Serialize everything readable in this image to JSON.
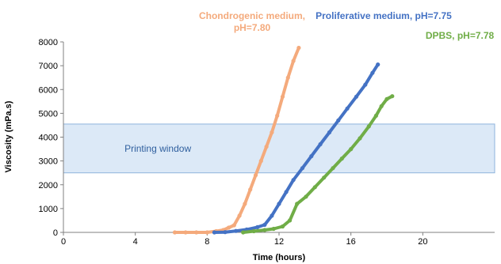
{
  "chart_data": {
    "type": "scatter",
    "title": "",
    "xlabel": "Time (hours)",
    "ylabel": "Viscosity (mPa.s)",
    "xlim": [
      0,
      24
    ],
    "ylim": [
      0,
      8000
    ],
    "xticks": [
      0,
      4,
      8,
      12,
      16,
      20
    ],
    "yticks": [
      0,
      1000,
      2000,
      3000,
      4000,
      5000,
      6000,
      7000,
      8000
    ],
    "grid": false,
    "band": {
      "label": "Printing window",
      "y_from": 2500,
      "y_to": 4550,
      "color": "#dce9f7"
    },
    "series": [
      {
        "name": "Chondrogenic medium, pH=7.80",
        "label_lines": [
          "Chondrogenic medium,",
          "pH=7.80"
        ],
        "color": "#f4aa7c",
        "points": [
          [
            6.2,
            0
          ],
          [
            6.8,
            0
          ],
          [
            7.4,
            0
          ],
          [
            8.0,
            0
          ],
          [
            8.5,
            50
          ],
          [
            8.9,
            100
          ],
          [
            9.2,
            200
          ],
          [
            9.5,
            300
          ],
          [
            9.8,
            700
          ],
          [
            10.1,
            1200
          ],
          [
            10.4,
            1800
          ],
          [
            10.7,
            2400
          ],
          [
            11.0,
            3000
          ],
          [
            11.3,
            3600
          ],
          [
            11.6,
            4200
          ],
          [
            11.9,
            4900
          ],
          [
            12.2,
            5700
          ],
          [
            12.5,
            6500
          ],
          [
            12.8,
            7200
          ],
          [
            13.1,
            7750
          ]
        ]
      },
      {
        "name": "Proliferative medium, pH=7.75",
        "label_lines": [
          "Proliferative medium, pH=7.75"
        ],
        "color": "#4472c4",
        "points": [
          [
            8.4,
            0
          ],
          [
            9.0,
            10
          ],
          [
            9.6,
            60
          ],
          [
            10.2,
            120
          ],
          [
            10.8,
            220
          ],
          [
            11.2,
            320
          ],
          [
            11.6,
            700
          ],
          [
            12.0,
            1200
          ],
          [
            12.4,
            1700
          ],
          [
            12.8,
            2200
          ],
          [
            13.3,
            2700
          ],
          [
            13.8,
            3200
          ],
          [
            14.3,
            3700
          ],
          [
            14.8,
            4200
          ],
          [
            15.3,
            4700
          ],
          [
            15.8,
            5200
          ],
          [
            16.3,
            5700
          ],
          [
            16.8,
            6200
          ],
          [
            17.2,
            6700
          ],
          [
            17.5,
            7050
          ]
        ]
      },
      {
        "name": "DPBS, pH=7.78",
        "label_lines": [
          "DPBS, pH=7.78"
        ],
        "color": "#70ad47",
        "points": [
          [
            10.0,
            0
          ],
          [
            10.6,
            50
          ],
          [
            11.2,
            100
          ],
          [
            11.7,
            150
          ],
          [
            12.2,
            250
          ],
          [
            12.6,
            500
          ],
          [
            13.0,
            1200
          ],
          [
            13.5,
            1500
          ],
          [
            14.0,
            1900
          ],
          [
            14.5,
            2300
          ],
          [
            15.0,
            2700
          ],
          [
            15.5,
            3100
          ],
          [
            16.0,
            3500
          ],
          [
            16.5,
            3950
          ],
          [
            17.0,
            4450
          ],
          [
            17.4,
            4900
          ],
          [
            17.7,
            5300
          ],
          [
            18.0,
            5600
          ],
          [
            18.3,
            5720
          ]
        ]
      }
    ]
  }
}
